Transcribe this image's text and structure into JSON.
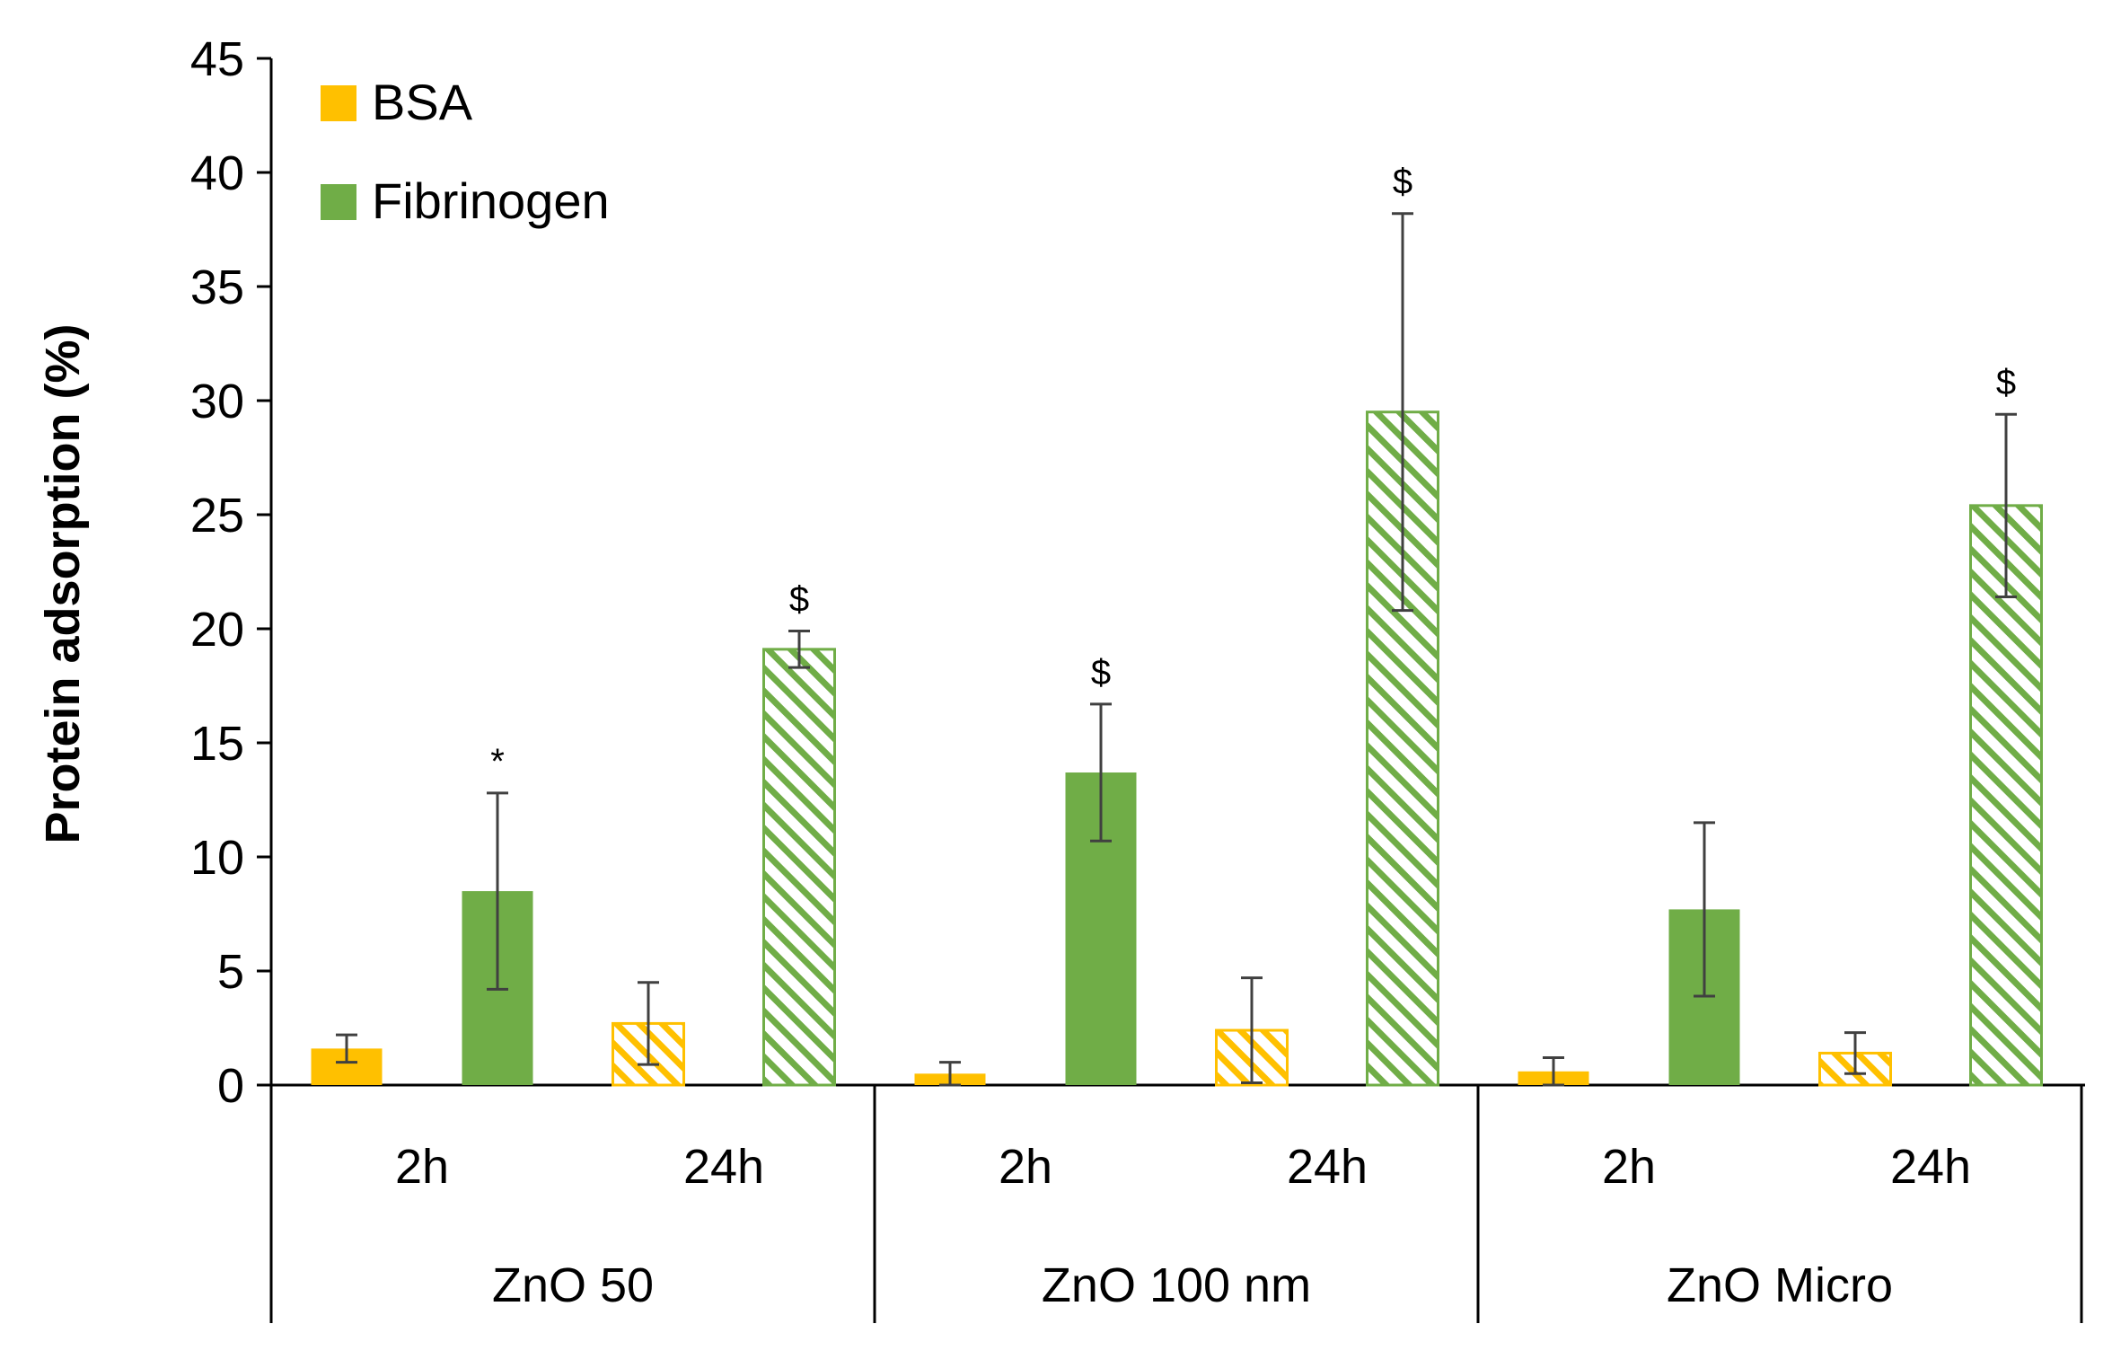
{
  "chart_data": {
    "type": "bar",
    "title": "",
    "ylabel": "Protein adsorption (%)",
    "ylim": [
      0,
      45
    ],
    "yticks": [
      0,
      5,
      10,
      15,
      20,
      25,
      30,
      35,
      40,
      45
    ],
    "grid": false,
    "legend_position": "top-left",
    "groups": [
      {
        "label": "ZnO 50",
        "subcategories": [
          "2h",
          "24h"
        ]
      },
      {
        "label": "ZnO 100 nm",
        "subcategories": [
          "2h",
          "24h"
        ]
      },
      {
        "label": "ZnO Micro",
        "subcategories": [
          "2h",
          "24h"
        ]
      }
    ],
    "categories": [
      "ZnO 50 2h",
      "ZnO 50 24h",
      "ZnO 100 nm 2h",
      "ZnO 100 nm 24h",
      "ZnO Micro 2h",
      "ZnO Micro 24h"
    ],
    "hatched_subcategory": "24h",
    "series": [
      {
        "name": "BSA",
        "color": "#FFC000",
        "values": [
          1.6,
          2.7,
          0.5,
          2.4,
          0.6,
          1.4
        ],
        "errors": [
          0.6,
          1.8,
          0.5,
          2.3,
          0.6,
          0.9
        ],
        "annotations": [
          "",
          "",
          "",
          "",
          "",
          ""
        ]
      },
      {
        "name": "Fibrinogen",
        "color": "#70AD47",
        "values": [
          8.5,
          19.1,
          13.7,
          29.5,
          7.7,
          25.4
        ],
        "errors": [
          4.3,
          0.8,
          3.0,
          8.7,
          3.8,
          4.0
        ],
        "annotations": [
          "*",
          "$",
          "$",
          "$",
          "",
          "$"
        ]
      }
    ]
  }
}
